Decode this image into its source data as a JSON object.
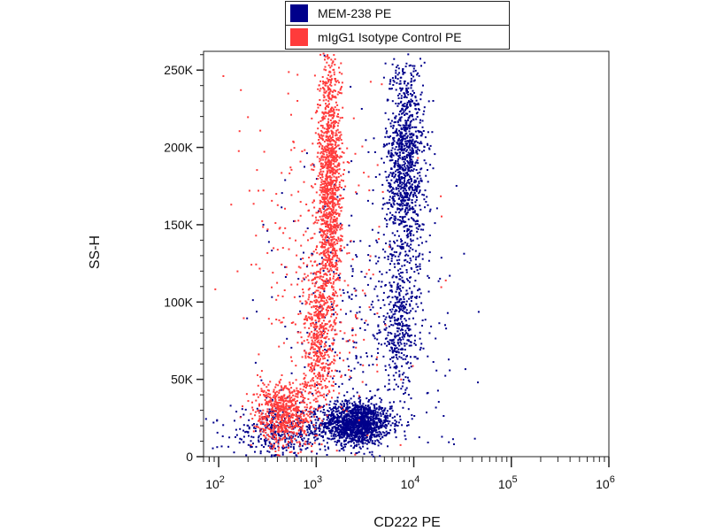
{
  "chart_data": {
    "type": "scatter",
    "xlabel": "CD222 PE",
    "ylabel": "SS-H",
    "x_scale": "log",
    "xlim": [
      70,
      1000000
    ],
    "ylim": [
      0,
      262144
    ],
    "x_ticks": [
      {
        "base": "10",
        "exp": "2",
        "value": 100
      },
      {
        "base": "10",
        "exp": "3",
        "value": 1000
      },
      {
        "base": "10",
        "exp": "4",
        "value": 10000
      },
      {
        "base": "10",
        "exp": "5",
        "value": 100000
      },
      {
        "base": "10",
        "exp": "6",
        "value": 1000000
      }
    ],
    "y_ticks": [
      {
        "label": "0",
        "value": 0
      },
      {
        "label": "50K",
        "value": 50000
      },
      {
        "label": "100K",
        "value": 100000
      },
      {
        "label": "150K",
        "value": 150000
      },
      {
        "label": "200K",
        "value": 200000
      },
      {
        "label": "250K",
        "value": 250000
      }
    ],
    "legend_placement": "top-center",
    "series": [
      {
        "name": "MEM-238 PE",
        "color": "#00008B",
        "clusters": [
          {
            "x_center": 2500,
            "x_spread": 0.18,
            "y_center": 22000,
            "y_spread": 7000,
            "count": 1400
          },
          {
            "x_center": 8000,
            "x_spread": 0.1,
            "y_center": 190000,
            "y_spread": 35000,
            "count": 1100
          },
          {
            "x_center": 7000,
            "x_spread": 0.1,
            "y_center": 85000,
            "y_spread": 20000,
            "count": 350
          },
          {
            "x_center": 400,
            "x_spread": 0.25,
            "y_center": 15000,
            "y_spread": 8000,
            "count": 350
          },
          {
            "x_center": 3000,
            "x_spread": 0.45,
            "y_center": 80000,
            "y_spread": 60000,
            "count": 450
          }
        ]
      },
      {
        "name": "mIgG1 Isotype Control PE",
        "color": "#FF3B3B",
        "clusters": [
          {
            "x_center": 1350,
            "x_spread": 0.06,
            "y_center": 175000,
            "y_spread": 45000,
            "count": 1300
          },
          {
            "x_center": 1000,
            "x_spread": 0.07,
            "y_center": 80000,
            "y_spread": 25000,
            "count": 450
          },
          {
            "x_center": 450,
            "x_spread": 0.15,
            "y_center": 28000,
            "y_spread": 11000,
            "count": 650
          },
          {
            "x_center": 1000,
            "x_spread": 0.4,
            "y_center": 120000,
            "y_spread": 70000,
            "count": 300
          }
        ]
      }
    ]
  }
}
